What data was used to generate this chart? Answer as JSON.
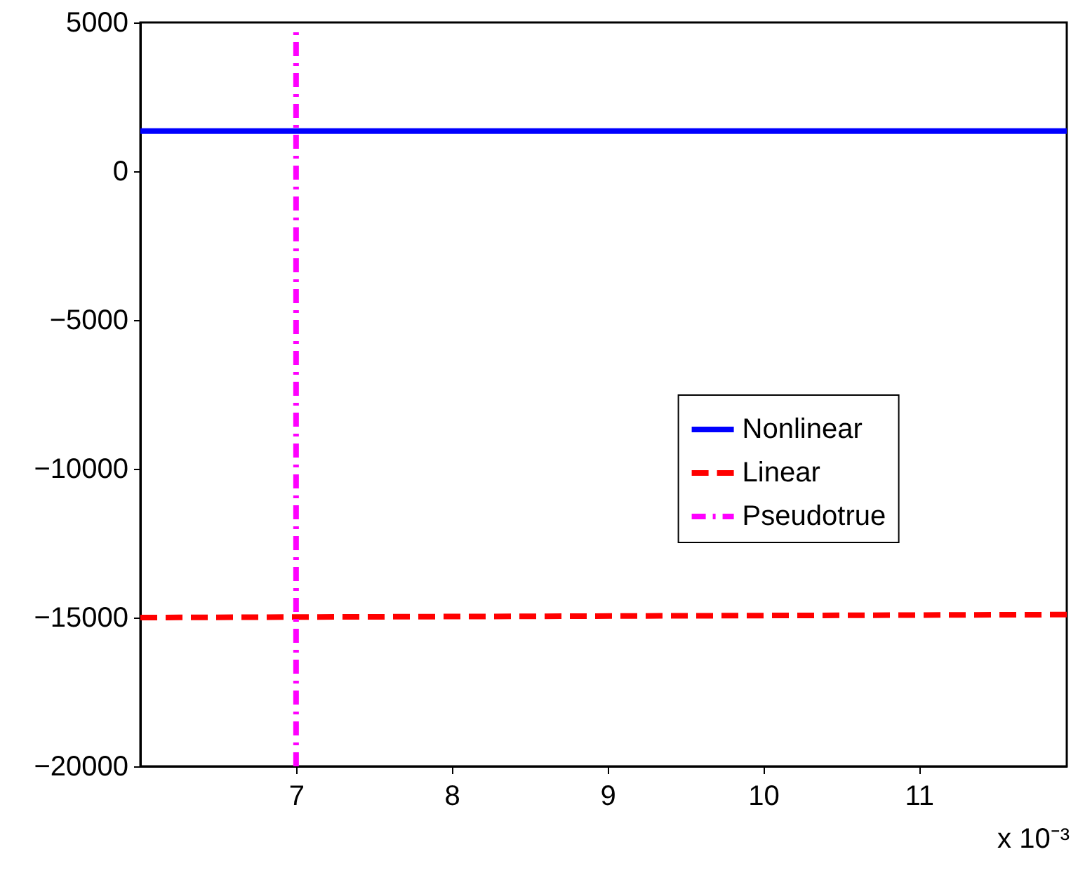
{
  "chart_data": {
    "type": "line",
    "xlim": [
      6,
      11.95
    ],
    "xticks": [
      7,
      8,
      9,
      10,
      11
    ],
    "ylim": [
      -20000,
      5000
    ],
    "yticks": [
      -20000,
      -15000,
      -10000,
      -5000,
      0,
      5000
    ],
    "series": [
      {
        "name": "Nonlinear",
        "color": "#0000ff",
        "line_style": "solid",
        "x": [
          6,
          11.95
        ],
        "values": [
          1350,
          1350
        ]
      },
      {
        "name": "Linear",
        "color": "#ff0000",
        "line_style": "dashed",
        "x": [
          6,
          11.95
        ],
        "values": [
          -15000,
          -14900
        ]
      },
      {
        "name": "Pseudotrue",
        "color": "#ff00ff",
        "line_style": "dashdot",
        "x": [
          7,
          7
        ],
        "values": [
          -20000,
          4700
        ]
      }
    ],
    "annotations": [
      "x 10⁻³"
    ],
    "legend": "right",
    "grid": false,
    "marker": "none"
  }
}
